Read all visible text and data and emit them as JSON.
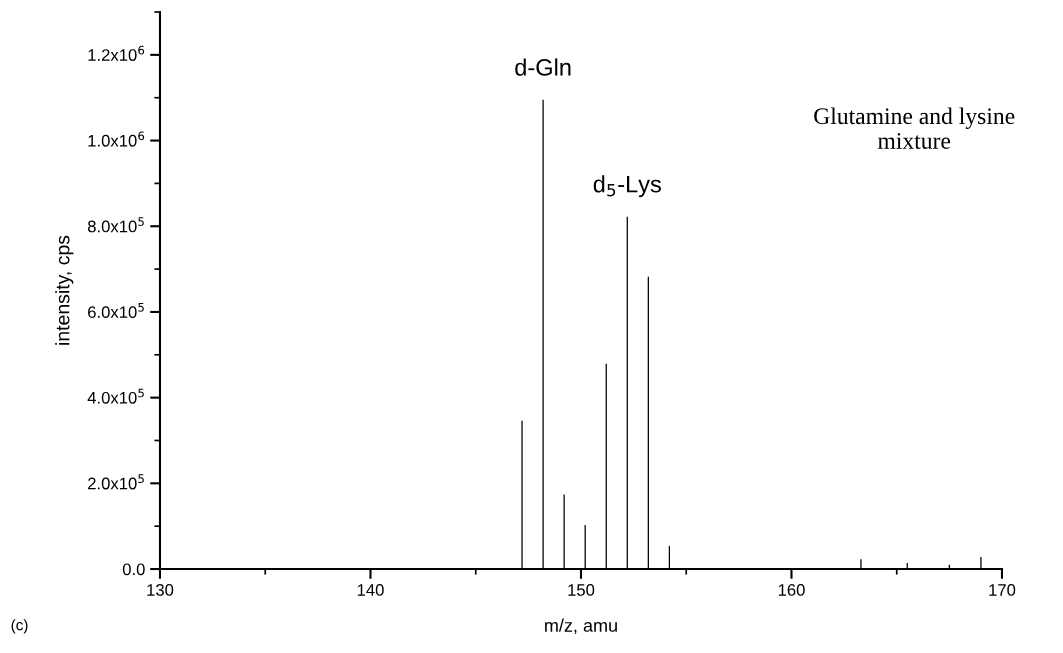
{
  "chart_data": {
    "type": "bar",
    "xlabel": "m/z, amu",
    "ylabel": "intensity, cps",
    "x": [
      147.2,
      148.2,
      149.2,
      150.2,
      151.2,
      152.2,
      153.2,
      154.2,
      163.3,
      165.5,
      167.5,
      169.0
    ],
    "series": [
      {
        "color": "#000000",
        "values": [
          346000,
          1095000,
          174000,
          103000,
          479000,
          822000,
          682000,
          54000,
          23000,
          14000,
          10000,
          28000
        ]
      }
    ],
    "xlim": [
      130,
      170
    ],
    "xticks": [
      130,
      140,
      150,
      160,
      170
    ],
    "ylim": [
      0,
      1300000
    ],
    "yticks": [
      {
        "value": 0,
        "label": "0.0"
      },
      {
        "value": 200000,
        "label": "2.0x10$^{5}$"
      },
      {
        "value": 400000,
        "label": "4.0x10$^{5}$"
      },
      {
        "value": 600000,
        "label": "6.0x10$^{5}$"
      },
      {
        "value": 800000,
        "label": "8.0x10$^{5}$"
      },
      {
        "value": 1000000,
        "label": "1.0x10$^{6}$"
      },
      {
        "value": 1200000,
        "label": "1.2x10$^{6}$"
      }
    ],
    "annotations": [
      {
        "text": "d-Gln",
        "x": 148.2,
        "y": 1095000
      },
      {
        "text": "d$_{5}$-Lys",
        "x": 152.2,
        "y": 822000
      },
      "Glutamine and lysine\nmixture",
      "(c)"
    ],
    "grid": false,
    "legend": false
  }
}
